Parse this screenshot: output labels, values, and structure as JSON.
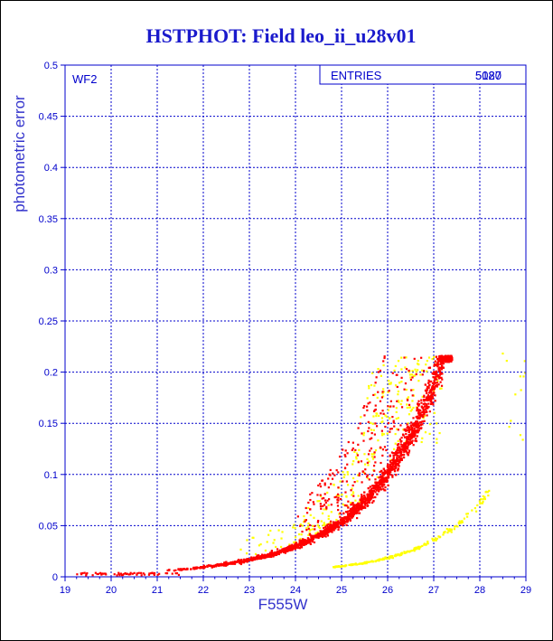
{
  "chart_data": {
    "type": "scatter",
    "title": "HSTPHOT: Field leo_ii_u28v01",
    "xlabel": "F555W",
    "ylabel": "photometric error",
    "xlim": [
      19,
      29
    ],
    "ylim": [
      0,
      0.5
    ],
    "x_ticks": [
      "19",
      "20",
      "21",
      "22",
      "23",
      "24",
      "25",
      "26",
      "27",
      "28",
      "29"
    ],
    "y_ticks": [
      "0",
      "0.05",
      "0.1",
      "0.15",
      "0.2",
      "0.25",
      "0.3",
      "0.35",
      "0.4",
      "0.45",
      "0.5"
    ],
    "grid": true,
    "panel_label": "WF2",
    "stats_box": {
      "label": "ENTRIES",
      "value_a": "5180",
      "value_b": "5027"
    },
    "series": [
      {
        "color": "#ff0000",
        "description_points": [
          [
            19.3,
            0.002
          ],
          [
            20.5,
            0.002
          ],
          [
            21.5,
            0.004
          ],
          [
            22.5,
            0.007
          ],
          [
            23.5,
            0.012
          ],
          [
            24.5,
            0.022
          ],
          [
            25.5,
            0.04
          ],
          [
            26.0,
            0.055
          ],
          [
            26.5,
            0.08
          ],
          [
            26.8,
            0.1
          ],
          [
            27.0,
            0.13
          ],
          [
            27.2,
            0.17
          ],
          [
            27.35,
            0.21
          ]
        ]
      },
      {
        "color": "#ffff00",
        "description_points": [
          [
            24.8,
            0.007
          ],
          [
            25.5,
            0.01
          ],
          [
            26.0,
            0.013
          ],
          [
            26.5,
            0.018
          ],
          [
            27.0,
            0.027
          ],
          [
            27.5,
            0.045
          ],
          [
            28.0,
            0.075
          ],
          [
            28.2,
            0.092
          ]
        ]
      }
    ]
  }
}
